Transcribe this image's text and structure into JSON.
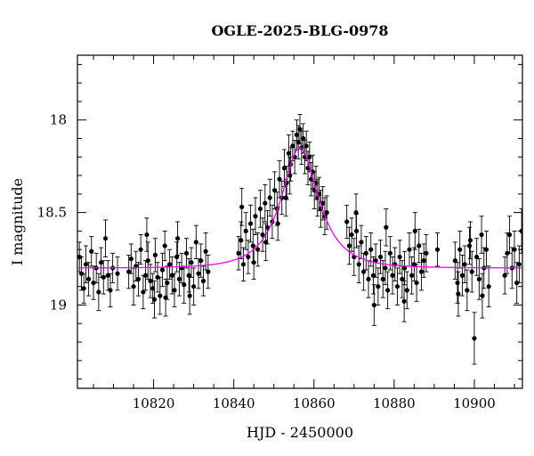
{
  "chart_data": {
    "type": "scatter",
    "title": "OGLE-2025-BLG-0978",
    "xlabel": "HJD - 2450000",
    "ylabel": "I magnitude",
    "xlim": [
      10801,
      10912
    ],
    "ylim": [
      19.45,
      17.65
    ],
    "y_inverted": true,
    "x_ticks": [
      10820,
      10840,
      10860,
      10880,
      10900
    ],
    "y_ticks": [
      18,
      18.5,
      19
    ],
    "x_tick_labels": [
      "10820",
      "10840",
      "10860",
      "10880",
      "10900"
    ],
    "y_tick_labels": [
      "18",
      "18.5",
      "19"
    ],
    "grid": false,
    "model": {
      "type": "Paczynski point-lens model",
      "color": "#ff00ff",
      "baseline_mag": 18.8,
      "t0": 10856.5,
      "peak_mag": 18.15,
      "u0": 0.6,
      "tE": 8.5
    },
    "series": [
      {
        "marker_color": "#000000",
        "points": [
          [
            10801.5,
            18.74,
            0.08
          ],
          [
            10802.0,
            18.83,
            0.09
          ],
          [
            10802.6,
            18.91,
            0.08
          ],
          [
            10803.1,
            18.78,
            0.1
          ],
          [
            10803.8,
            18.86,
            0.09
          ],
          [
            10804.5,
            18.71,
            0.08
          ],
          [
            10805.0,
            18.88,
            0.09
          ],
          [
            10805.7,
            18.8,
            0.08
          ],
          [
            10806.3,
            18.93,
            0.1
          ],
          [
            10806.9,
            18.77,
            0.08
          ],
          [
            10807.5,
            18.85,
            0.09
          ],
          [
            10808.0,
            18.64,
            0.1
          ],
          [
            10808.6,
            18.84,
            0.08
          ],
          [
            10809.2,
            18.92,
            0.09
          ],
          [
            10809.8,
            18.8,
            0.08
          ],
          [
            10813.8,
            18.82,
            0.09
          ],
          [
            10814.4,
            18.75,
            0.08
          ],
          [
            10815.0,
            18.9,
            0.1
          ],
          [
            10815.6,
            18.79,
            0.08
          ],
          [
            10816.2,
            18.86,
            0.09
          ],
          [
            10816.8,
            18.7,
            0.08
          ],
          [
            10817.4,
            18.93,
            0.09
          ],
          [
            10818.0,
            18.84,
            0.08
          ],
          [
            10818.6,
            18.76,
            0.1
          ],
          [
            10819.2,
            18.87,
            0.09
          ],
          [
            10819.8,
            18.91,
            0.08
          ],
          [
            10820.4,
            18.73,
            0.09
          ],
          [
            10821.0,
            18.85,
            0.08
          ],
          [
            10821.6,
            18.95,
            0.1
          ],
          [
            10822.2,
            18.81,
            0.09
          ],
          [
            10822.8,
            18.68,
            0.08
          ],
          [
            10823.4,
            18.88,
            0.09
          ],
          [
            10824.0,
            18.78,
            0.08
          ],
          [
            10824.6,
            18.84,
            0.1
          ],
          [
            10825.2,
            18.92,
            0.09
          ],
          [
            10825.8,
            18.74,
            0.08
          ],
          [
            10826.4,
            18.86,
            0.09
          ],
          [
            10827.0,
            18.8,
            0.08
          ],
          [
            10827.6,
            18.89,
            0.1
          ],
          [
            10828.2,
            18.72,
            0.08
          ],
          [
            10828.8,
            18.84,
            0.09
          ],
          [
            10829.4,
            18.77,
            0.08
          ],
          [
            10830.0,
            18.9,
            0.1
          ],
          [
            10830.6,
            18.66,
            0.09
          ],
          [
            10831.2,
            18.83,
            0.08
          ],
          [
            10831.8,
            18.76,
            0.09
          ],
          [
            10832.4,
            18.87,
            0.08
          ],
          [
            10833.0,
            18.71,
            0.1
          ],
          [
            10833.6,
            18.82,
            0.09
          ],
          [
            10820.2,
            18.97,
            0.1
          ],
          [
            10818.3,
            18.62,
            0.09
          ],
          [
            10823.0,
            18.96,
            0.1
          ],
          [
            10826.0,
            18.64,
            0.09
          ],
          [
            10829.0,
            18.95,
            0.1
          ],
          [
            10811.0,
            18.83,
            0.09
          ],
          [
            10841.2,
            18.72,
            0.09
          ],
          [
            10841.8,
            18.65,
            0.1
          ],
          [
            10842.4,
            18.78,
            0.09
          ],
          [
            10843.0,
            18.6,
            0.1
          ],
          [
            10843.6,
            18.74,
            0.09
          ],
          [
            10844.2,
            18.56,
            0.1
          ],
          [
            10844.8,
            18.68,
            0.09
          ],
          [
            10845.4,
            18.52,
            0.1
          ],
          [
            10846.0,
            18.7,
            0.09
          ],
          [
            10846.6,
            18.48,
            0.1
          ],
          [
            10847.2,
            18.62,
            0.09
          ],
          [
            10847.8,
            18.45,
            0.1
          ],
          [
            10848.4,
            18.58,
            0.09
          ],
          [
            10849.0,
            18.42,
            0.1
          ],
          [
            10849.6,
            18.55,
            0.09
          ],
          [
            10850.2,
            18.38,
            0.1
          ],
          [
            10850.8,
            18.48,
            0.09
          ],
          [
            10851.4,
            18.32,
            0.1
          ],
          [
            10852.0,
            18.42,
            0.09
          ],
          [
            10852.6,
            18.26,
            0.1
          ],
          [
            10853.2,
            18.34,
            0.09
          ],
          [
            10853.7,
            18.18,
            0.1
          ],
          [
            10854.2,
            18.24,
            0.09
          ],
          [
            10854.7,
            18.14,
            0.08
          ],
          [
            10855.2,
            18.2,
            0.09
          ],
          [
            10855.7,
            18.08,
            0.08
          ],
          [
            10856.1,
            18.12,
            0.09
          ],
          [
            10856.5,
            18.05,
            0.08
          ],
          [
            10856.9,
            18.15,
            0.09
          ],
          [
            10857.3,
            18.1,
            0.08
          ],
          [
            10857.7,
            18.2,
            0.09
          ],
          [
            10858.1,
            18.14,
            0.08
          ],
          [
            10858.5,
            18.26,
            0.09
          ],
          [
            10858.9,
            18.2,
            0.08
          ],
          [
            10859.3,
            18.32,
            0.09
          ],
          [
            10859.7,
            18.28,
            0.09
          ],
          [
            10860.1,
            18.38,
            0.1
          ],
          [
            10860.5,
            18.34,
            0.09
          ],
          [
            10860.9,
            18.42,
            0.1
          ],
          [
            10861.3,
            18.4,
            0.09
          ],
          [
            10861.7,
            18.48,
            0.1
          ],
          [
            10862.2,
            18.45,
            0.09
          ],
          [
            10862.7,
            18.52,
            0.1
          ],
          [
            10863.2,
            18.5,
            0.09
          ],
          [
            10854.0,
            18.3,
            0.1
          ],
          [
            10842.0,
            18.47,
            0.1
          ],
          [
            10845.0,
            18.77,
            0.09
          ],
          [
            10848.0,
            18.66,
            0.1
          ],
          [
            10851.0,
            18.56,
            0.09
          ],
          [
            10853.0,
            18.42,
            0.1
          ],
          [
            10868.2,
            18.55,
            0.09
          ],
          [
            10868.8,
            18.68,
            0.1
          ],
          [
            10869.4,
            18.62,
            0.09
          ],
          [
            10870.0,
            18.74,
            0.1
          ],
          [
            10870.6,
            18.6,
            0.09
          ],
          [
            10871.2,
            18.78,
            0.1
          ],
          [
            10871.8,
            18.66,
            0.09
          ],
          [
            10872.4,
            18.82,
            0.1
          ],
          [
            10873.0,
            18.72,
            0.09
          ],
          [
            10873.6,
            18.86,
            0.1
          ],
          [
            10874.2,
            18.7,
            0.09
          ],
          [
            10874.8,
            18.84,
            0.1
          ],
          [
            10875.4,
            18.76,
            0.09
          ],
          [
            10876.0,
            18.9,
            0.1
          ],
          [
            10876.6,
            18.74,
            0.09
          ],
          [
            10877.2,
            18.86,
            0.1
          ],
          [
            10877.8,
            18.8,
            0.09
          ],
          [
            10878.4,
            18.92,
            0.1
          ],
          [
            10879.0,
            18.72,
            0.09
          ],
          [
            10879.6,
            18.84,
            0.1
          ],
          [
            10880.2,
            18.78,
            0.09
          ],
          [
            10880.8,
            18.9,
            0.1
          ],
          [
            10881.4,
            18.74,
            0.09
          ],
          [
            10882.0,
            18.86,
            0.1
          ],
          [
            10882.6,
            18.8,
            0.09
          ],
          [
            10883.2,
            18.92,
            0.1
          ],
          [
            10883.8,
            18.7,
            0.09
          ],
          [
            10884.4,
            18.84,
            0.1
          ],
          [
            10885.0,
            18.78,
            0.09
          ],
          [
            10885.6,
            18.88,
            0.1
          ],
          [
            10886.2,
            18.68,
            0.09
          ],
          [
            10886.8,
            18.82,
            0.1
          ],
          [
            10887.4,
            18.76,
            0.09
          ],
          [
            10888.0,
            18.72,
            0.1
          ],
          [
            10890.8,
            18.7,
            0.09
          ],
          [
            10870.5,
            18.5,
            0.1
          ],
          [
            10875.0,
            19.0,
            0.11
          ],
          [
            10878.0,
            18.58,
            0.1
          ],
          [
            10882.5,
            18.98,
            0.11
          ],
          [
            10885.2,
            18.6,
            0.1
          ],
          [
            10895.2,
            18.76,
            0.1
          ],
          [
            10895.8,
            18.88,
            0.11
          ],
          [
            10896.4,
            18.7,
            0.1
          ],
          [
            10897.0,
            18.84,
            0.11
          ],
          [
            10897.6,
            18.78,
            0.1
          ],
          [
            10898.2,
            18.92,
            0.11
          ],
          [
            10898.8,
            18.68,
            0.1
          ],
          [
            10899.4,
            18.82,
            0.11
          ],
          [
            10900.0,
            19.18,
            0.14
          ],
          [
            10900.6,
            18.74,
            0.1
          ],
          [
            10901.2,
            18.86,
            0.11
          ],
          [
            10901.8,
            18.62,
            0.1
          ],
          [
            10902.4,
            18.8,
            0.11
          ],
          [
            10903.0,
            18.7,
            0.1
          ],
          [
            10903.6,
            18.9,
            0.11
          ],
          [
            10896.0,
            18.94,
            0.12
          ],
          [
            10899.0,
            18.65,
            0.1
          ],
          [
            10902.0,
            18.95,
            0.12
          ],
          [
            10907.6,
            18.84,
            0.1
          ],
          [
            10908.2,
            18.72,
            0.11
          ],
          [
            10908.8,
            18.62,
            0.1
          ],
          [
            10909.4,
            18.8,
            0.11
          ],
          [
            10910.0,
            18.7,
            0.1
          ],
          [
            10910.6,
            18.88,
            0.11
          ],
          [
            10911.2,
            18.78,
            0.1
          ],
          [
            10911.8,
            18.6,
            0.12
          ]
        ]
      }
    ]
  }
}
